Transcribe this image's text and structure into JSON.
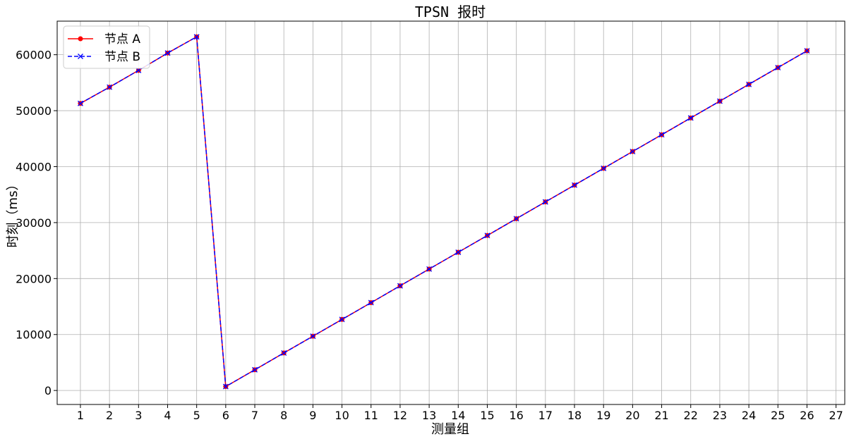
{
  "chart_data": {
    "type": "line",
    "title": "TPSN 报时",
    "xlabel": "测量组",
    "ylabel": "时刻（ms）",
    "x": [
      1,
      2,
      3,
      4,
      5,
      6,
      7,
      8,
      9,
      10,
      11,
      12,
      13,
      14,
      15,
      16,
      17,
      18,
      19,
      20,
      21,
      22,
      23,
      24,
      25,
      26
    ],
    "xticks": [
      1,
      2,
      3,
      4,
      5,
      6,
      7,
      8,
      9,
      10,
      11,
      12,
      13,
      14,
      15,
      16,
      17,
      18,
      19,
      20,
      21,
      22,
      23,
      24,
      25,
      26,
      27
    ],
    "yticks": [
      0,
      10000,
      20000,
      30000,
      40000,
      50000,
      60000
    ],
    "xlim": [
      0.2,
      27.3
    ],
    "ylim": [
      -2500,
      66000
    ],
    "grid": true,
    "legend": "top-left",
    "series": [
      {
        "name": "节点 A",
        "color": "#ff0000",
        "marker": "circle",
        "linestyle": "solid",
        "values": [
          51300,
          54200,
          57200,
          60300,
          63200,
          700,
          3700,
          6700,
          9700,
          12700,
          15700,
          18700,
          21700,
          24700,
          27700,
          30700,
          33700,
          36700,
          39700,
          42700,
          45700,
          48700,
          51700,
          54700,
          57700,
          60700
        ]
      },
      {
        "name": "节点 B",
        "color": "#0000ff",
        "marker": "x",
        "linestyle": "dashed",
        "values": [
          51300,
          54200,
          57200,
          60300,
          63200,
          700,
          3700,
          6700,
          9700,
          12700,
          15700,
          18700,
          21700,
          24700,
          27700,
          30700,
          33700,
          36700,
          39700,
          42700,
          45700,
          48700,
          51700,
          54700,
          57700,
          60700
        ]
      }
    ]
  }
}
